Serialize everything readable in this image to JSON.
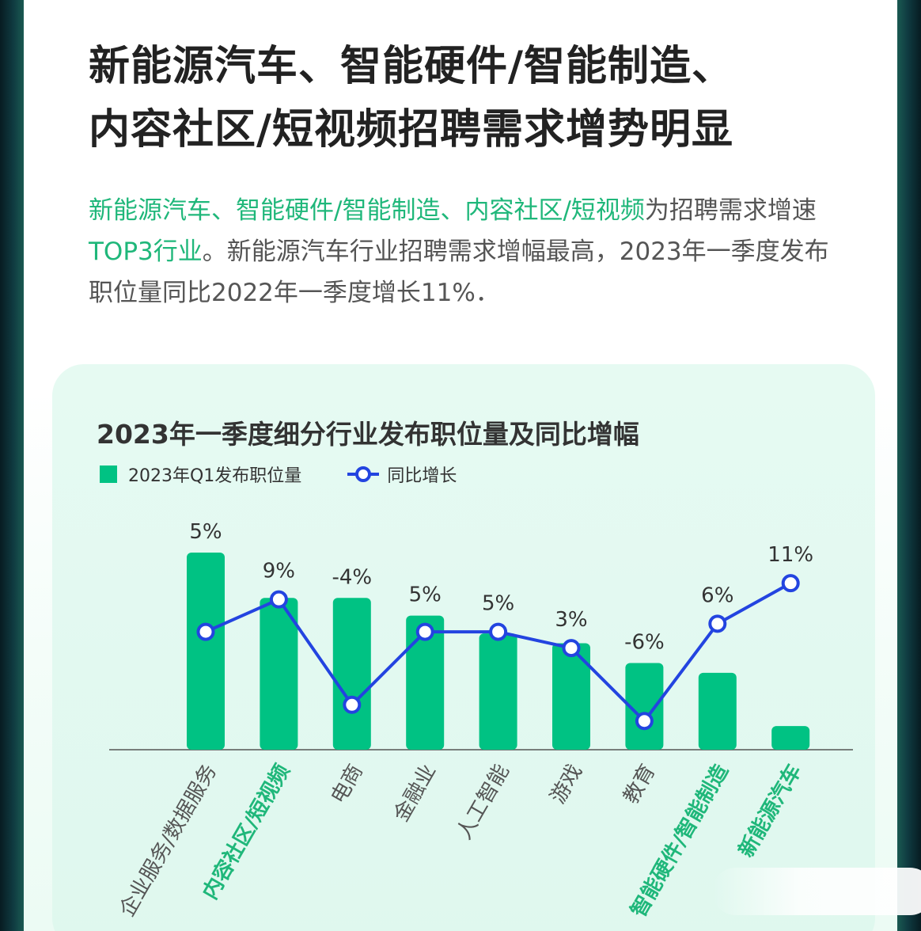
{
  "headline": {
    "line1": "新能源汽车、智能硬件/智能制造、",
    "line2": "内容社区/短视频招聘需求增势明显"
  },
  "intro": {
    "hl1": "新能源汽车、智能硬件/智能制造、内容社区/短视频",
    "t1": "为招聘需求增速",
    "hl2": "TOP3行业",
    "t2": "。新能源汽车行业招聘需求增幅最高，2023年一季度发布职位量同比2022年一季度增长11%．"
  },
  "colors": {
    "bar": "#00c283",
    "line": "#2344e0",
    "highlight_text": "#1fb77a",
    "body_text": "#555555"
  },
  "chart_data": {
    "type": "bar",
    "title": "2023年一季度细分行业发布职位量及同比增幅",
    "legend": {
      "bar_label": "2023年Q1发布职位量",
      "line_label": "同比增长",
      "placement": "top-left"
    },
    "categories": [
      "企业服务/数据服务",
      "内容社区/短视频",
      "电商",
      "金融业",
      "人工智能",
      "游戏",
      "教育",
      "智能硬件/智能制造",
      "新能源汽车"
    ],
    "highlighted_categories": [
      "内容社区/短视频",
      "智能硬件/智能制造",
      "新能源汽车"
    ],
    "series": [
      {
        "name": "2023年Q1发布职位量",
        "type": "bar",
        "values": [
          100,
          77,
          77,
          68,
          59,
          54,
          44,
          39,
          12
        ]
      },
      {
        "name": "同比增长",
        "type": "line",
        "values": [
          5,
          9,
          -4,
          5,
          5,
          3,
          -6,
          6,
          11
        ],
        "labels": [
          "5%",
          "9%",
          "-4%",
          "5%",
          "5%",
          "3%",
          "-6%",
          "6%",
          "11%"
        ]
      }
    ],
    "grid": false
  }
}
